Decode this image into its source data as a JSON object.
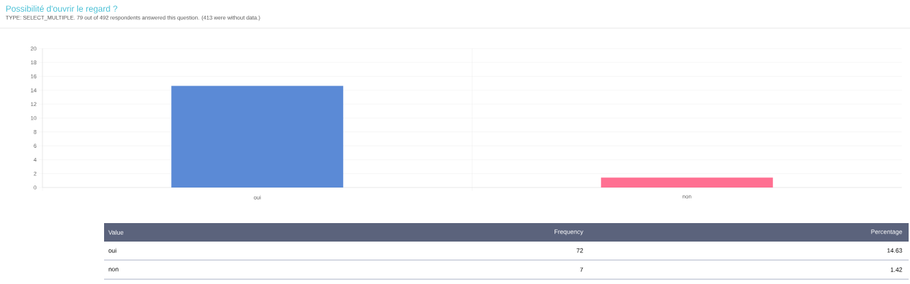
{
  "chart_data": {
    "type": "bar",
    "title": "Possibilité d'ouvrir le regard ?",
    "subtitle": "TYPE: SELECT_MULTIPLE. 79 out of 492 respondents answered this question. (413 were without data.)",
    "categories": [
      "oui",
      "non"
    ],
    "values": [
      14.63,
      1.42
    ],
    "colors": [
      "#5b8ad6",
      "#ff6f91"
    ],
    "ylim": [
      0,
      20
    ],
    "yticks": [
      0,
      2,
      4,
      6,
      8,
      10,
      12,
      14,
      16,
      18,
      20
    ],
    "grid": true,
    "annotations": [
      "Value",
      "Frequency",
      "Percentage",
      "72",
      "14.63",
      "7",
      "1.42"
    ]
  }
}
